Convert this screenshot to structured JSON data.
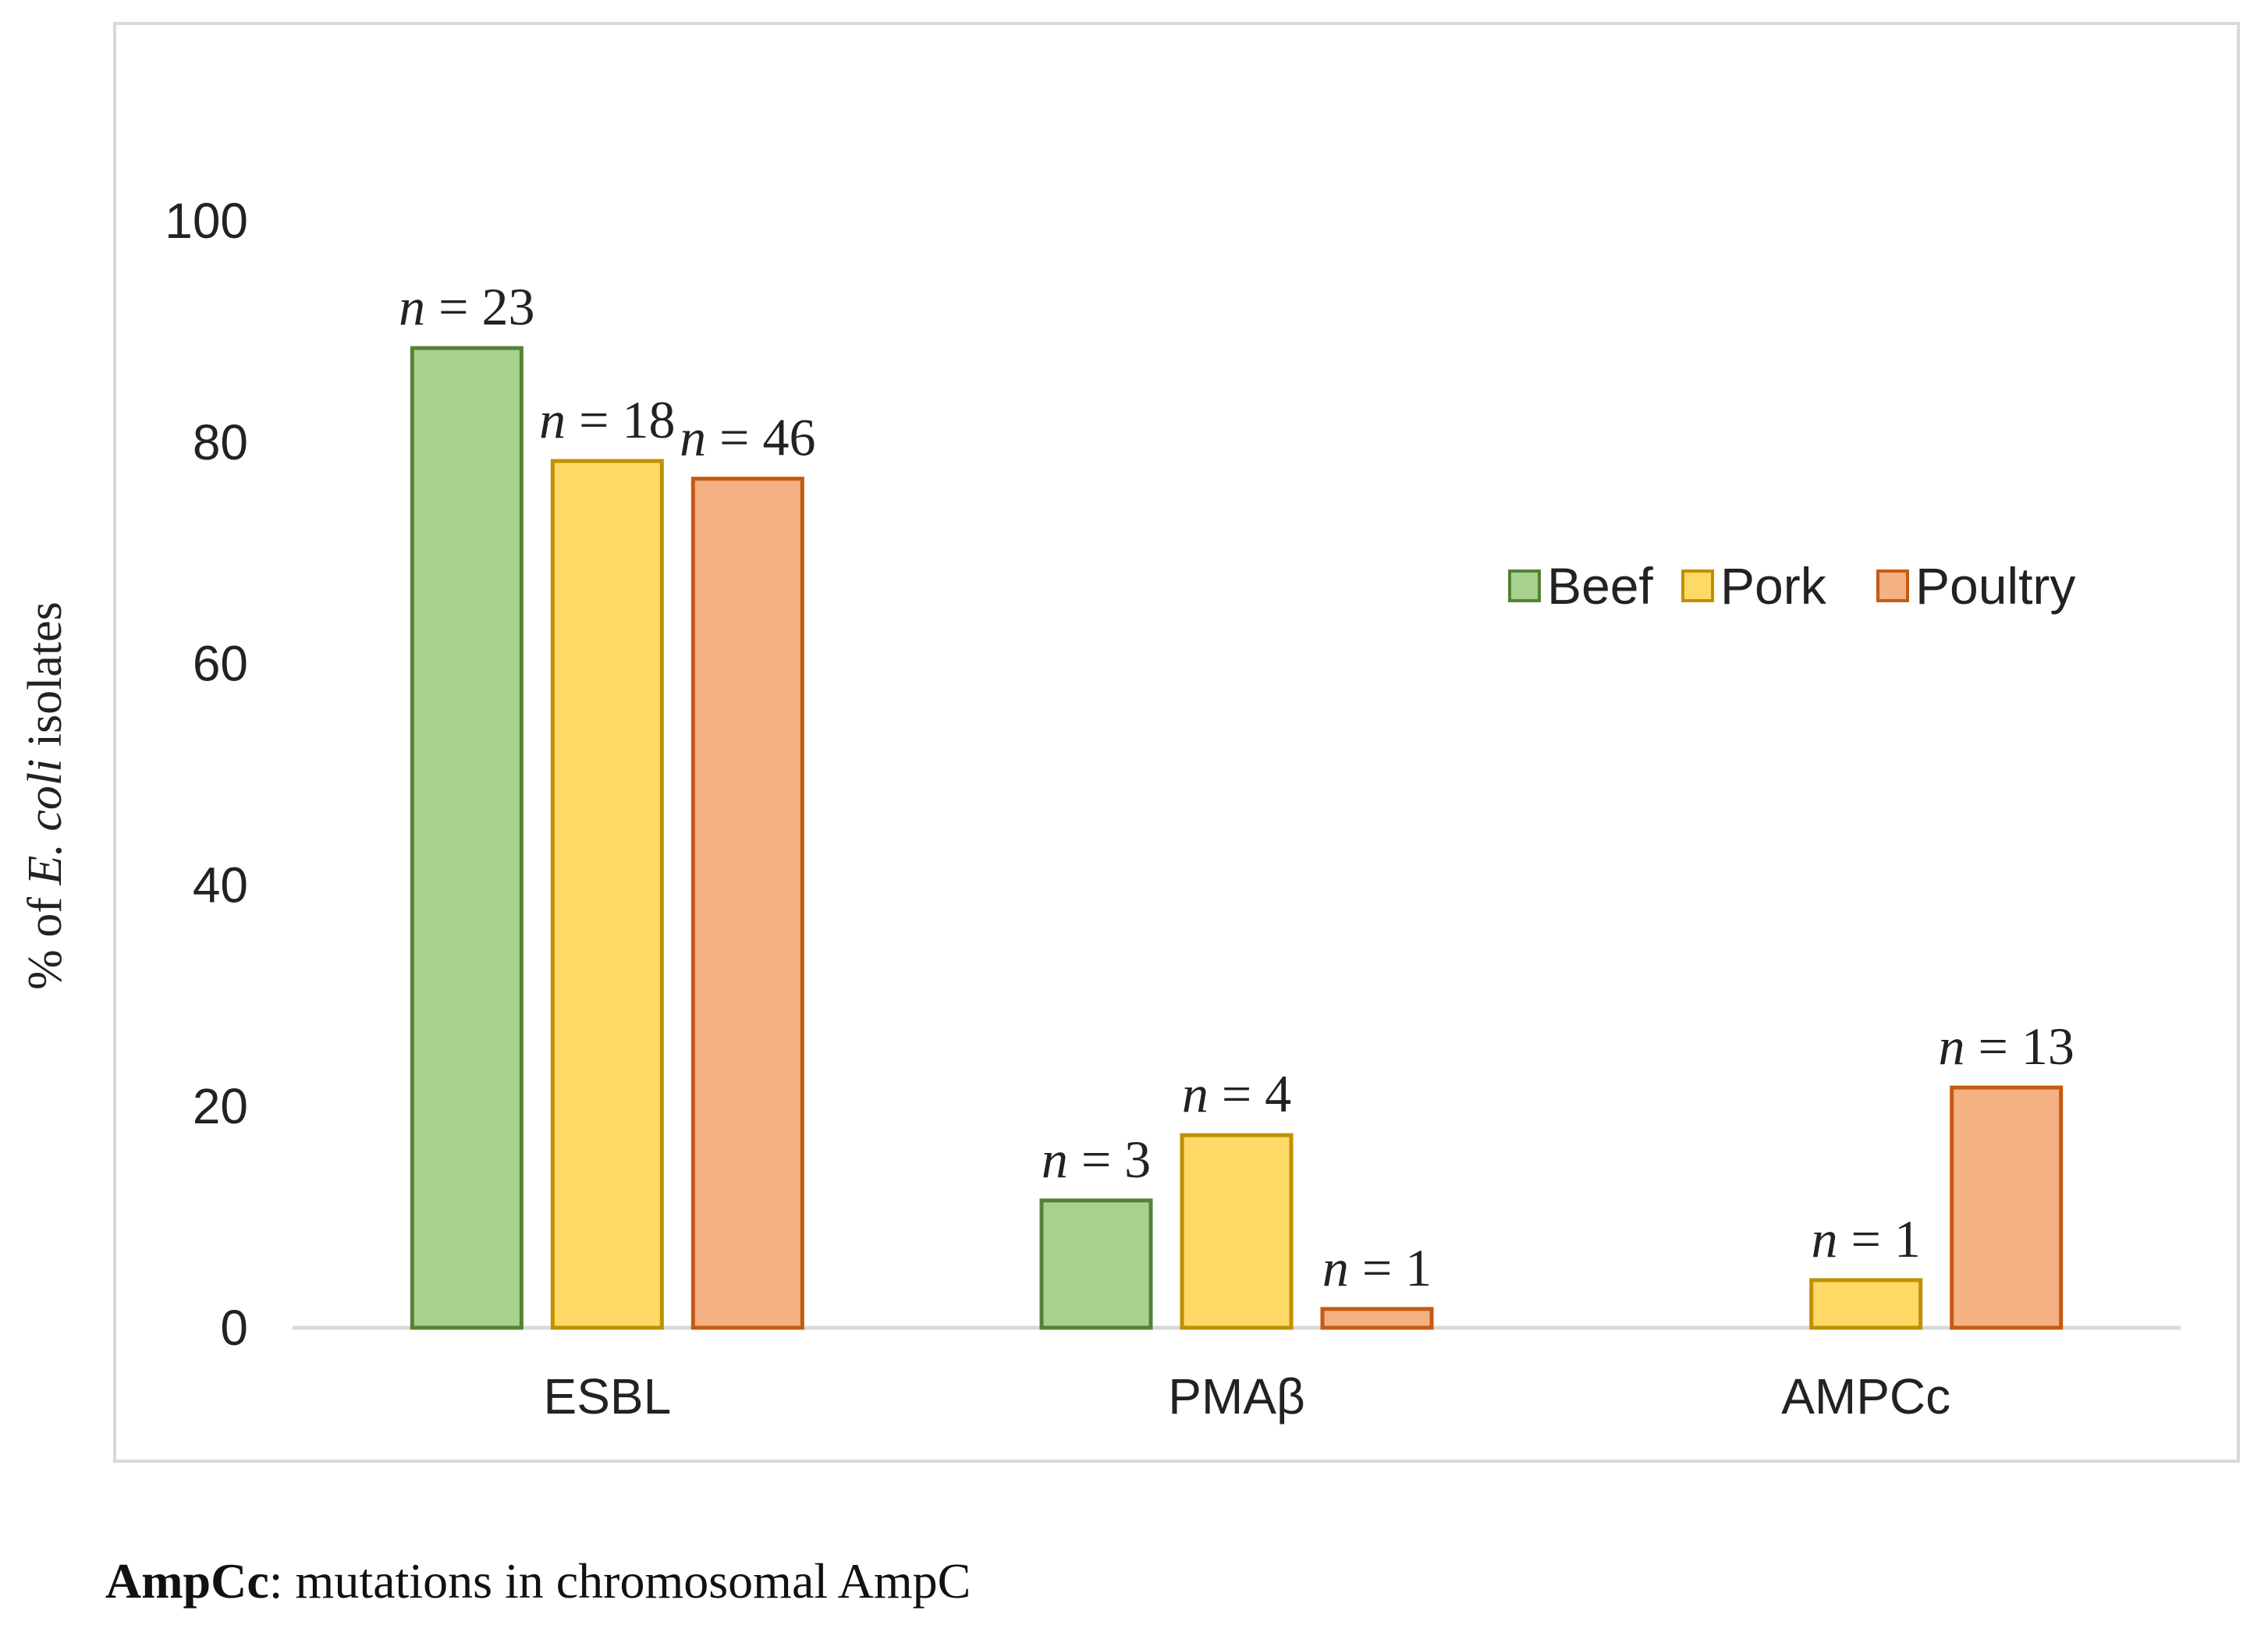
{
  "chart_data": {
    "type": "bar",
    "categories": [
      "ESBL",
      "PMAβ",
      "AMPCc"
    ],
    "series": [
      {
        "name": "Beef",
        "color": "#a9d18e",
        "stroke": "#548235",
        "values": [
          88.5,
          11.5,
          null
        ],
        "labels": [
          "23",
          "3",
          null
        ]
      },
      {
        "name": "Pork",
        "color": "#ffd966",
        "stroke": "#bf9000",
        "values": [
          78.3,
          17.4,
          4.3
        ],
        "labels": [
          "18",
          "4",
          "1"
        ]
      },
      {
        "name": "Poultry",
        "color": "#f4b183",
        "stroke": "#c55a11",
        "values": [
          76.7,
          1.7,
          21.7
        ],
        "labels": [
          "46",
          "1",
          "13"
        ]
      }
    ],
    "yticks": [
      "0",
      "20",
      "40",
      "60",
      "80",
      "100"
    ],
    "ylim": [
      0,
      100
    ],
    "ylabel": {
      "prefix": "% of ",
      "italic": "E. coli",
      "suffix": " isolates"
    },
    "label_prefix": "n",
    "label_eq": " = ",
    "legend_position": "right-middle",
    "grid": false
  },
  "footnote": {
    "term": "AmpCc",
    "text": ": mutations in chromosomal AmpC"
  }
}
